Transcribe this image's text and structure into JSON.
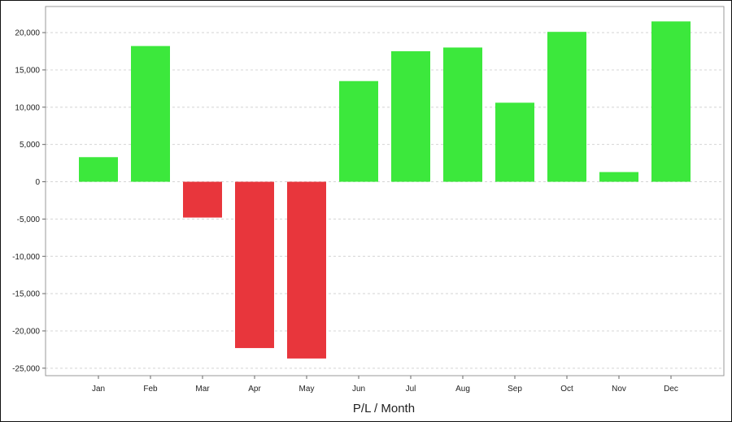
{
  "chart_data": {
    "type": "bar",
    "title": "",
    "xlabel": "P/L / Month",
    "ylabel": "",
    "categories": [
      "Jan",
      "Feb",
      "Mar",
      "Apr",
      "May",
      "Jun",
      "Jul",
      "Aug",
      "Sep",
      "Oct",
      "Nov",
      "Dec"
    ],
    "values": [
      3300,
      18200,
      -4800,
      -22300,
      -23700,
      13500,
      17500,
      18000,
      10600,
      20100,
      1300,
      21500
    ],
    "ylim": [
      -26000,
      23500
    ],
    "yticks": [
      20000,
      15000,
      10000,
      5000,
      0,
      -5000,
      -10000,
      -15000,
      -20000,
      -25000
    ],
    "ytick_labels": [
      "20,000",
      "15,000",
      "10,000",
      "5,000",
      "0",
      "-5,000",
      "-10,000",
      "-15,000",
      "-20,000",
      "-25,000"
    ],
    "grid": true,
    "legend": "none",
    "colors": {
      "positive": "#3ce83c",
      "negative": "#e8363c",
      "grid": "#d4d4d4",
      "frame": "#999999"
    }
  }
}
